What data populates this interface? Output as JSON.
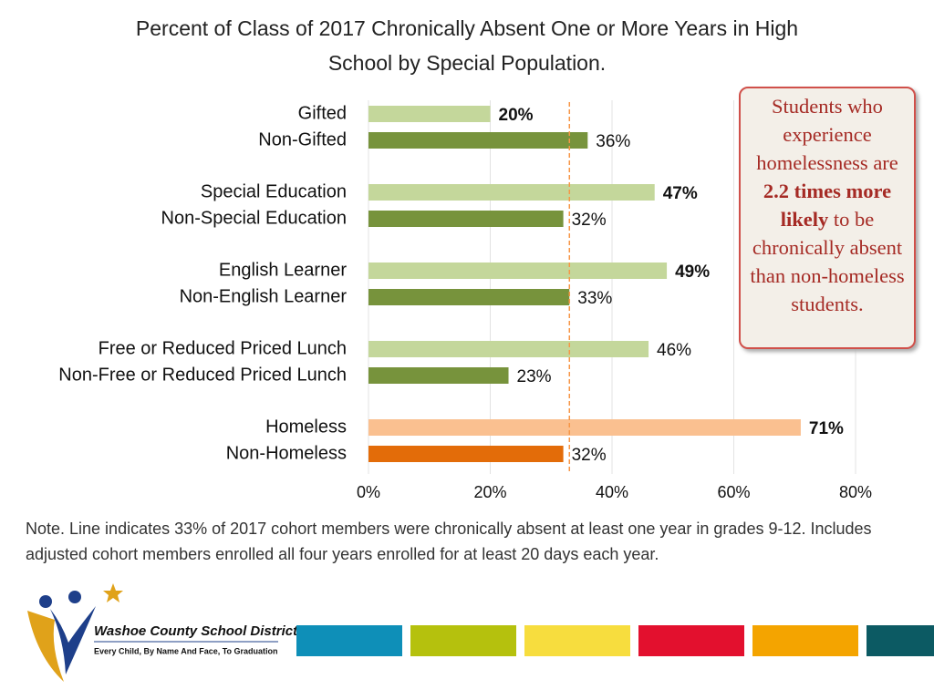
{
  "chart_data": {
    "type": "bar",
    "orientation": "horizontal",
    "title": "Percent of Class of 2017 Chronically Absent One or More Years in High School by Special Population.",
    "categories": [
      "Gifted",
      "Non-Gifted",
      "Special Education",
      "Non-Special Education",
      "English Learner",
      "Non-English Learner",
      "Free or Reduced Priced Lunch",
      "Non-Free or Reduced Priced Lunch",
      "Homeless",
      "Non-Homeless"
    ],
    "values": [
      20,
      36,
      47,
      32,
      49,
      33,
      46,
      23,
      71,
      32
    ],
    "value_labels": [
      "20%",
      "36%",
      "47%",
      "32%",
      "49%",
      "33%",
      "46%",
      "23%",
      "71%",
      "32%"
    ],
    "value_label_bold": [
      true,
      false,
      true,
      false,
      true,
      false,
      false,
      false,
      true,
      false
    ],
    "colors": [
      "#c4d79b",
      "#77933c",
      "#c4d79b",
      "#77933c",
      "#c4d79b",
      "#77933c",
      "#c4d79b",
      "#77933c",
      "#fac090",
      "#e36c09"
    ],
    "xlim": [
      0,
      80
    ],
    "xticks": [
      {
        "value": 0,
        "label": "0%"
      },
      {
        "value": 20,
        "label": "20%"
      },
      {
        "value": 40,
        "label": "40%"
      },
      {
        "value": 60,
        "label": "60%"
      },
      {
        "value": 80,
        "label": "80%"
      }
    ],
    "grid": true,
    "reference_line": {
      "value": 33,
      "color": "#f79646"
    },
    "annotation": [
      {
        "text": "Students who experience homelessness are "
      },
      {
        "text": "2.2 times more likely",
        "bold": true
      },
      {
        "text": " to be chronically absent than non-homeless students."
      }
    ],
    "note": "Note. Line indicates 33% of 2017 cohort members were chronically absent at least one year in grades 9-12. Includes adjusted cohort members enrolled all four years enrolled for at least 20 days each year."
  },
  "footer": {
    "organization": "Washoe County School District",
    "motto": "Every Child, By Name And Face, To Graduation"
  }
}
